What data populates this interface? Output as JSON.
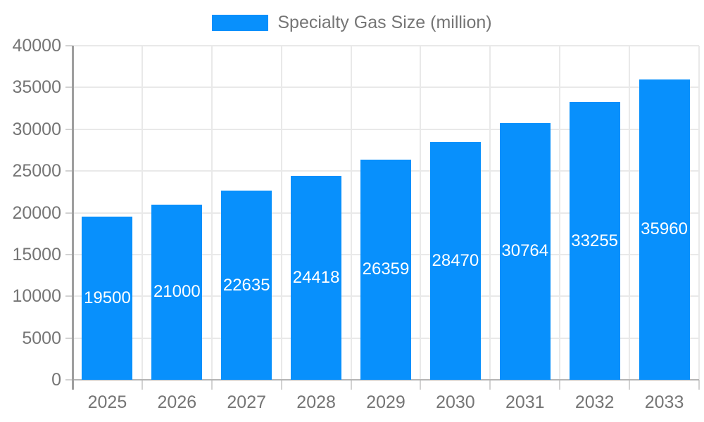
{
  "chart_data": {
    "type": "bar",
    "title": "",
    "series_name": "Specialty Gas Size (million)",
    "categories": [
      "2025",
      "2026",
      "2027",
      "2028",
      "2029",
      "2030",
      "2031",
      "2032",
      "2033"
    ],
    "values": [
      19500,
      21000,
      22635,
      24418,
      26359,
      28470,
      30764,
      33255,
      35960
    ],
    "xlabel": "",
    "ylabel": "",
    "ylim": [
      0,
      40000
    ],
    "yticks": [
      0,
      5000,
      10000,
      15000,
      20000,
      25000,
      30000,
      35000,
      40000
    ],
    "grid": true,
    "legend_position": "top",
    "value_labels_shown": true,
    "colors": {
      "bar": "#0890fc",
      "value_label": "#ffffff",
      "axis_text": "#757575",
      "gridline": "#e9e9e9",
      "y_axis_line": "#9e9e9e",
      "x_axis_line": "#b5b5b5",
      "tick": "#d2d2d2",
      "background": "#ffffff"
    }
  }
}
